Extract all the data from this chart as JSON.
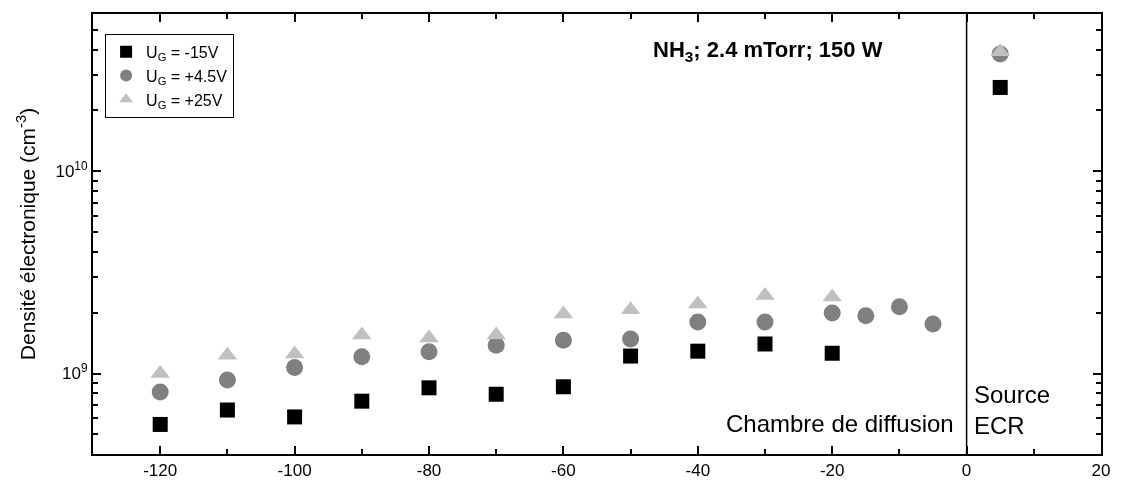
{
  "chart_data": {
    "type": "scatter",
    "annotations": [
      "NH$_{3}$; 2.4 mTorr; 150 W",
      "Chambre de diffusion",
      "Source\nECR"
    ],
    "ylabel": "Densité électronique (cm$^{-3}$)",
    "x": [
      -120,
      -110,
      -100,
      -90,
      -80,
      -70,
      -60,
      -50,
      -40,
      -30,
      -20,
      -15,
      -10,
      -5,
      5
    ],
    "series": [
      {
        "name": "U$_{G}$ = -15V",
        "color": "#000000",
        "marker": "square",
        "values": [
          560000000.0,
          660000000.0,
          610000000.0,
          730000000.0,
          850000000.0,
          790000000.0,
          860000000.0,
          1220000000.0,
          1290000000.0,
          1400000000.0,
          1260000000.0,
          null,
          null,
          null,
          26000000000.0
        ]
      },
      {
        "name": "U$_{G}$ = +4.5V",
        "color": "#808080",
        "marker": "circle",
        "values": [
          810000000.0,
          930000000.0,
          1070000000.0,
          1210000000.0,
          1280000000.0,
          1380000000.0,
          1460000000.0,
          1480000000.0,
          1800000000.0,
          1800000000.0,
          1990000000.0,
          1930000000.0,
          2140000000.0,
          1760000000.0,
          38000000000.0
        ]
      },
      {
        "name": "U$_{G}$ = +25V",
        "color": "#c0c0c0",
        "marker": "triangle",
        "values": [
          1000000000.0,
          1230000000.0,
          1250000000.0,
          1550000000.0,
          1500000000.0,
          1550000000.0,
          1970000000.0,
          2070000000.0,
          2210000000.0,
          2430000000.0,
          2390000000.0,
          null,
          null,
          null,
          39000000000.0
        ]
      }
    ],
    "log": "y",
    "xlim": [
      -130,
      20
    ],
    "xticks": [
      -120,
      -100,
      -80,
      -60,
      -40,
      -20,
      0,
      20
    ],
    "ylim": [
      400000000.0,
      60000000000.0
    ],
    "yticks": [
      {
        "value": 1000000000.0,
        "label": "10$^{9}$"
      },
      {
        "value": 10000000000.0,
        "label": "10$^{10}$"
      }
    ],
    "ref_lines": [
      {
        "axis": "x",
        "value": 0,
        "color": "#000000"
      }
    ],
    "legend": "top left"
  }
}
